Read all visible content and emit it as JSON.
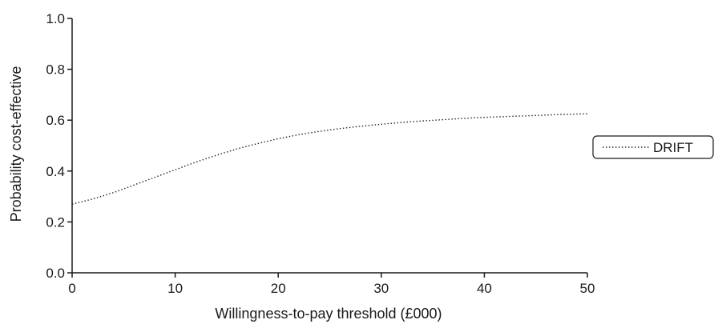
{
  "chart_data": {
    "type": "line",
    "title": "",
    "xlabel": "Willingness-to-pay threshold (£000)",
    "ylabel": "Probability cost-effective",
    "xlim": [
      0,
      50
    ],
    "ylim": [
      0,
      1
    ],
    "xticks": [
      "0",
      "10",
      "20",
      "30",
      "40",
      "50"
    ],
    "yticks": [
      "0.0",
      "0.2",
      "0.4",
      "0.6",
      "0.8",
      "1.0"
    ],
    "grid": false,
    "legend_position": "right",
    "series": [
      {
        "name": "DRIFT",
        "line_style": "dotted",
        "color": "#1a1a1a",
        "x": [
          0,
          2,
          4,
          6,
          8,
          10,
          12,
          14,
          16,
          18,
          20,
          22,
          24,
          26,
          28,
          30,
          32,
          34,
          36,
          38,
          40,
          42,
          44,
          46,
          48,
          50
        ],
        "y": [
          0.27,
          0.29,
          0.315,
          0.345,
          0.375,
          0.405,
          0.435,
          0.462,
          0.487,
          0.508,
          0.527,
          0.543,
          0.556,
          0.567,
          0.576,
          0.584,
          0.591,
          0.597,
          0.602,
          0.607,
          0.611,
          0.614,
          0.617,
          0.62,
          0.623,
          0.625
        ]
      }
    ]
  }
}
